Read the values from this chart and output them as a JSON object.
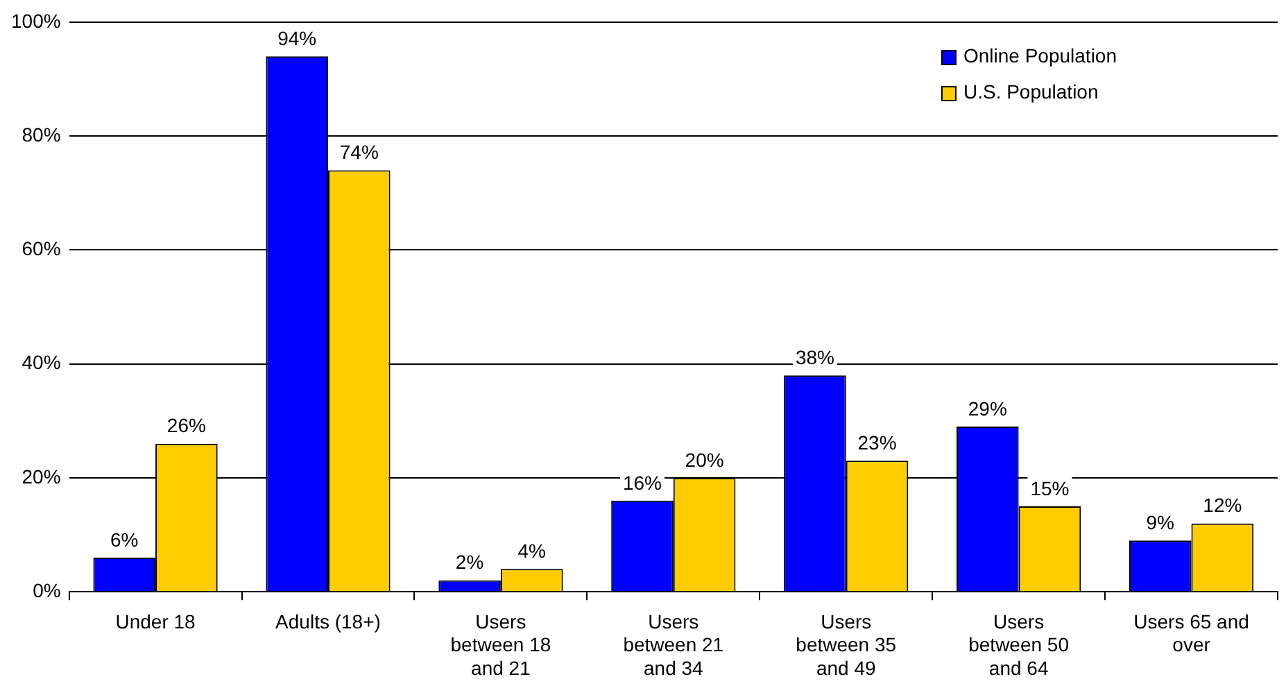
{
  "chart_data": {
    "type": "bar",
    "categories": [
      "Under 18",
      "Adults (18+)",
      "Users between 18 and 21",
      "Users between 21 and 34",
      "Users between 35 and 49",
      "Users between 50 and 64",
      "Users 65 and over"
    ],
    "series": [
      {
        "name": "Online Population",
        "color": "#0000ff",
        "values": [
          6,
          94,
          2,
          16,
          38,
          29,
          9
        ],
        "value_labels": [
          "6%",
          "94%",
          "2%",
          "16%",
          "38%",
          "29%",
          "9%"
        ]
      },
      {
        "name": "U.S. Population",
        "color": "#ffcc00",
        "values": [
          26,
          74,
          4,
          20,
          23,
          15,
          12
        ],
        "value_labels": [
          "26%",
          "74%",
          "4%",
          "20%",
          "23%",
          "15%",
          "12%"
        ]
      }
    ],
    "ylim": [
      0,
      100
    ],
    "yticks": [
      {
        "value": 0,
        "label": "0%"
      },
      {
        "value": 20,
        "label": "20%"
      },
      {
        "value": 40,
        "label": "40%"
      },
      {
        "value": 60,
        "label": "60%"
      },
      {
        "value": 80,
        "label": "80%"
      },
      {
        "value": 100,
        "label": "100%"
      }
    ],
    "grid": "y",
    "legend": "top right"
  }
}
